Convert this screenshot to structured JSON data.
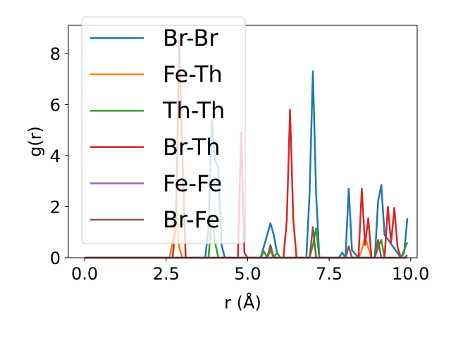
{
  "chart_data": {
    "type": "line",
    "title": "",
    "xlabel": "r (Å)",
    "ylabel": "g(r)",
    "xlim": [
      -0.5,
      10.2
    ],
    "ylim": [
      0,
      9.1
    ],
    "xticks": [
      0.0,
      2.5,
      5.0,
      7.5,
      10.0
    ],
    "xtick_labels": [
      "0.0",
      "2.5",
      "5.0",
      "7.5",
      "10.0"
    ],
    "yticks": [
      0,
      2,
      4,
      6,
      8
    ],
    "ytick_labels": [
      "0",
      "2",
      "4",
      "6",
      "8"
    ],
    "grid": false,
    "legend_position": "top-left",
    "series": [
      {
        "name": "Br-Br",
        "color": "#1f77b4",
        "x": [
          0,
          3.7,
          3.8,
          3.9,
          4.0,
          4.1,
          4.2,
          4.3,
          5.4,
          5.6,
          5.7,
          5.8,
          5.9,
          6.0,
          6.8,
          6.9,
          7.0,
          7.1,
          7.2,
          7.8,
          7.9,
          8.0,
          8.1,
          8.2,
          8.3,
          8.4,
          8.9,
          9.0,
          9.1,
          9.2,
          9.7,
          9.8,
          9.9
        ],
        "y": [
          0,
          0,
          1.2,
          5.4,
          3.8,
          3.5,
          0.5,
          0,
          0,
          0.9,
          1.35,
          0.9,
          0.2,
          0,
          0,
          2.5,
          7.3,
          2.5,
          0,
          0,
          0.2,
          0,
          2.7,
          0.3,
          0.15,
          0,
          0,
          2.2,
          2.85,
          0.9,
          0,
          0.2,
          1.55
        ]
      },
      {
        "name": "Fe-Th",
        "color": "#ff7f0e",
        "x": [
          0,
          2.6,
          2.7,
          2.8,
          2.9,
          3.0,
          8.4,
          8.5,
          8.6,
          8.7,
          8.8
        ],
        "y": [
          0,
          0,
          0.6,
          1.95,
          0.4,
          0,
          0,
          0.3,
          0.8,
          0.4,
          0
        ]
      },
      {
        "name": "Th-Th",
        "color": "#2ca02c",
        "x": [
          0,
          3.8,
          3.9,
          4.0,
          4.1,
          5.4,
          5.5,
          5.6,
          5.7,
          5.8,
          5.9,
          6.0,
          6.1,
          6.9,
          7.0,
          7.1,
          7.2,
          8.9,
          9.0,
          9.1,
          9.2,
          9.7,
          9.8,
          9.9
        ],
        "y": [
          0,
          0,
          1.7,
          0.6,
          0,
          0,
          0.25,
          0,
          0.3,
          0,
          0.2,
          0,
          0,
          0,
          0.5,
          1.15,
          0,
          0,
          0.4,
          0.7,
          0,
          0,
          0.3,
          0.6
        ]
      },
      {
        "name": "Br-Th",
        "color": "#d62728",
        "x": [
          0,
          2.7,
          2.8,
          2.9,
          3.0,
          3.1,
          4.7,
          4.8,
          4.9,
          5.0,
          6.1,
          6.2,
          6.3,
          6.4,
          6.5,
          6.6,
          8.4,
          8.5,
          8.6,
          8.7,
          8.8,
          9.2,
          9.3,
          9.4,
          9.5,
          9.6,
          9.7
        ],
        "y": [
          0,
          0,
          1.5,
          8.5,
          4.0,
          0,
          0,
          4.9,
          0.2,
          0,
          0,
          1.5,
          5.8,
          1.5,
          0,
          0,
          0,
          2.7,
          0.5,
          1.55,
          0,
          0,
          2.0,
          0.6,
          1.95,
          0.4,
          0
        ]
      },
      {
        "name": "Fe-Fe",
        "color": "#9467bd",
        "x": [
          0,
          9.9
        ],
        "y": [
          0,
          0
        ]
      },
      {
        "name": "Br-Fe",
        "color": "#8c564b",
        "x": [
          0,
          5.6,
          5.7,
          5.8,
          6.9,
          7.0,
          7.1,
          8.0,
          8.1,
          8.2,
          8.9,
          9.0,
          9.1,
          9.8,
          9.9
        ],
        "y": [
          0,
          0,
          0.5,
          0,
          0,
          1.2,
          0,
          0,
          0.45,
          0,
          0,
          0.7,
          0,
          0,
          0.1
        ]
      }
    ]
  }
}
